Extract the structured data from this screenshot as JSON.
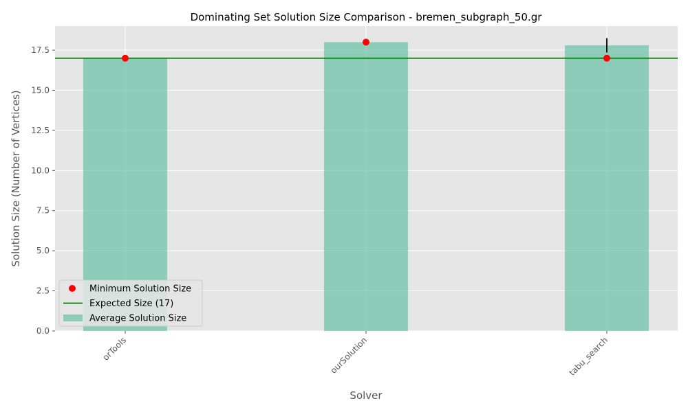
{
  "chart_data": {
    "type": "bar",
    "title": "Dominating Set Solution Size Comparison - bremen_subgraph_50.gr",
    "xlabel": "Solver",
    "ylabel": "Solution Size (Number of Vertices)",
    "categories": [
      "orTools",
      "ourSolution",
      "tabu_search"
    ],
    "ylim": [
      0,
      19
    ],
    "yticks": [
      0.0,
      2.5,
      5.0,
      7.5,
      10.0,
      12.5,
      15.0,
      17.5
    ],
    "ytick_labels": [
      "0.0",
      "2.5",
      "5.0",
      "7.5",
      "10.0",
      "12.5",
      "15.0",
      "17.5"
    ],
    "grid": true,
    "legend_position": "lower-left",
    "series": [
      {
        "name": "Average Solution Size",
        "kind": "bar",
        "color": "#66c2a5",
        "values": [
          17.0,
          18.0,
          17.8
        ],
        "error": [
          0,
          0,
          0.45
        ]
      },
      {
        "name": "Minimum Solution Size",
        "kind": "scatter",
        "color": "#ff0000",
        "values": [
          17,
          18,
          17
        ]
      },
      {
        "name": "Expected Size (17)",
        "kind": "hline",
        "color": "#008000",
        "value": 17
      }
    ],
    "legend_order": [
      "Minimum Solution Size",
      "Expected Size (17)",
      "Average Solution Size"
    ],
    "colors": {
      "background": "#e5e5e5",
      "grid": "#ffffff",
      "errorbar": "#000000"
    }
  }
}
